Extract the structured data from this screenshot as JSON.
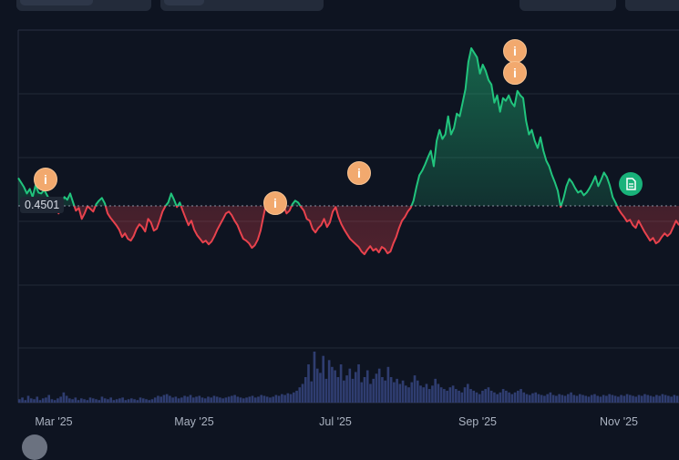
{
  "price_label": "0.4501",
  "chart_data": {
    "type": "area",
    "baseline": 0.4501,
    "colors": {
      "above": "#21c47d",
      "below": "#e8424d",
      "volume": "#2f3d70",
      "grid": "#232a38",
      "markers_info": "#f2a96e",
      "marker_doc": "#19b27a"
    },
    "x_ticks": [
      "Mar '25",
      "May '25",
      "Jul '25",
      "Sep '25",
      "Nov '25"
    ],
    "markers": [
      {
        "icon": "info-icon",
        "label": "i"
      },
      {
        "icon": "info-icon",
        "label": "i"
      },
      {
        "icon": "info-icon",
        "label": "i"
      },
      {
        "icon": "info-icon",
        "label": "i"
      },
      {
        "icon": "info-icon",
        "label": "i"
      },
      {
        "icon": "document-icon",
        "label": ""
      }
    ],
    "series": [
      {
        "values": [
          0.457,
          0.452,
          0.447,
          0.44,
          0.445,
          0.436,
          0.449,
          0.441,
          0.44,
          0.444,
          0.438,
          0.432,
          0.428,
          0.434,
          0.418,
          0.43,
          0.436,
          0.433,
          0.44,
          0.43,
          0.421,
          0.424,
          0.412,
          0.418,
          0.426,
          0.423,
          0.42,
          0.428,
          0.432,
          0.435,
          0.429,
          0.418,
          0.413,
          0.409,
          0.405,
          0.4,
          0.392,
          0.396,
          0.39,
          0.388,
          0.393,
          0.401,
          0.406,
          0.403,
          0.398,
          0.412,
          0.408,
          0.399,
          0.401,
          0.41,
          0.42,
          0.426,
          0.43,
          0.44,
          0.433,
          0.425,
          0.43,
          0.421,
          0.413,
          0.405,
          0.41,
          0.4,
          0.394,
          0.39,
          0.386,
          0.388,
          0.384,
          0.387,
          0.393,
          0.4,
          0.406,
          0.412,
          0.418,
          0.42,
          0.416,
          0.41,
          0.405,
          0.397,
          0.39,
          0.388,
          0.385,
          0.38,
          0.383,
          0.389,
          0.399,
          0.415,
          0.43,
          0.437,
          0.44,
          0.433,
          0.428,
          0.439,
          0.426,
          0.418,
          0.421,
          0.428,
          0.432,
          0.43,
          0.425,
          0.421,
          0.412,
          0.41,
          0.401,
          0.397,
          0.402,
          0.405,
          0.412,
          0.403,
          0.408,
          0.42,
          0.425,
          0.414,
          0.406,
          0.4,
          0.395,
          0.39,
          0.387,
          0.384,
          0.381,
          0.376,
          0.373,
          0.378,
          0.382,
          0.377,
          0.379,
          0.375,
          0.381,
          0.379,
          0.374,
          0.376,
          0.385,
          0.392,
          0.402,
          0.41,
          0.414,
          0.42,
          0.424,
          0.432,
          0.447,
          0.46,
          0.465,
          0.472,
          0.48,
          0.487,
          0.47,
          0.498,
          0.51,
          0.5,
          0.505,
          0.525,
          0.505,
          0.512,
          0.528,
          0.525,
          0.54,
          0.555,
          0.585,
          0.6,
          0.595,
          0.59,
          0.572,
          0.582,
          0.575,
          0.565,
          0.56,
          0.54,
          0.548,
          0.53,
          0.545,
          0.542,
          0.548,
          0.54,
          0.536,
          0.553,
          0.548,
          0.545,
          0.52,
          0.505,
          0.51,
          0.498,
          0.49,
          0.502,
          0.487,
          0.476,
          0.47,
          0.46,
          0.452,
          0.443,
          0.425,
          0.435,
          0.448,
          0.456,
          0.452,
          0.446,
          0.441,
          0.443,
          0.438,
          0.441,
          0.446,
          0.452,
          0.459,
          0.448,
          0.455,
          0.463,
          0.458,
          0.449,
          0.436,
          0.43,
          0.423,
          0.418,
          0.414,
          0.409,
          0.411,
          0.405,
          0.402,
          0.41,
          0.404,
          0.398,
          0.393,
          0.388,
          0.391,
          0.385,
          0.387,
          0.392,
          0.396,
          0.393,
          0.396,
          0.403,
          0.41,
          0.405
        ]
      }
    ],
    "volume": [
      4,
      6,
      3,
      8,
      5,
      4,
      7,
      3,
      5,
      6,
      9,
      4,
      3,
      5,
      7,
      12,
      8,
      5,
      4,
      6,
      3,
      5,
      4,
      3,
      6,
      5,
      4,
      3,
      7,
      5,
      4,
      6,
      3,
      4,
      5,
      6,
      3,
      4,
      5,
      4,
      3,
      6,
      5,
      4,
      3,
      4,
      6,
      8,
      7,
      9,
      10,
      8,
      6,
      7,
      5,
      6,
      8,
      7,
      9,
      6,
      7,
      8,
      6,
      5,
      7,
      6,
      8,
      7,
      6,
      5,
      6,
      7,
      8,
      9,
      7,
      6,
      5,
      6,
      7,
      8,
      6,
      7,
      9,
      8,
      7,
      6,
      7,
      9,
      8,
      10,
      9,
      11,
      10,
      12,
      14,
      18,
      22,
      30,
      45,
      25,
      60,
      40,
      35,
      55,
      28,
      50,
      42,
      38,
      30,
      45,
      26,
      32,
      40,
      28,
      36,
      45,
      24,
      30,
      38,
      22,
      28,
      34,
      40,
      30,
      26,
      42,
      30,
      24,
      28,
      22,
      26,
      20,
      18,
      24,
      32,
      26,
      20,
      18,
      22,
      16,
      20,
      28,
      22,
      18,
      16,
      14,
      18,
      20,
      16,
      14,
      12,
      18,
      22,
      16,
      14,
      12,
      10,
      14,
      16,
      18,
      14,
      12,
      10,
      12,
      16,
      14,
      12,
      10,
      12,
      14,
      16,
      12,
      10,
      9,
      11,
      12,
      10,
      9,
      8,
      10,
      12,
      9,
      8,
      10,
      9,
      8,
      10,
      12,
      9,
      8,
      10,
      9,
      8,
      7,
      9,
      10,
      8,
      7,
      9,
      8,
      10,
      9,
      8,
      7,
      9,
      8,
      10,
      9,
      8,
      7,
      9,
      8,
      10,
      9,
      8,
      7,
      9,
      8,
      10,
      9,
      8,
      7,
      9,
      8
    ]
  }
}
